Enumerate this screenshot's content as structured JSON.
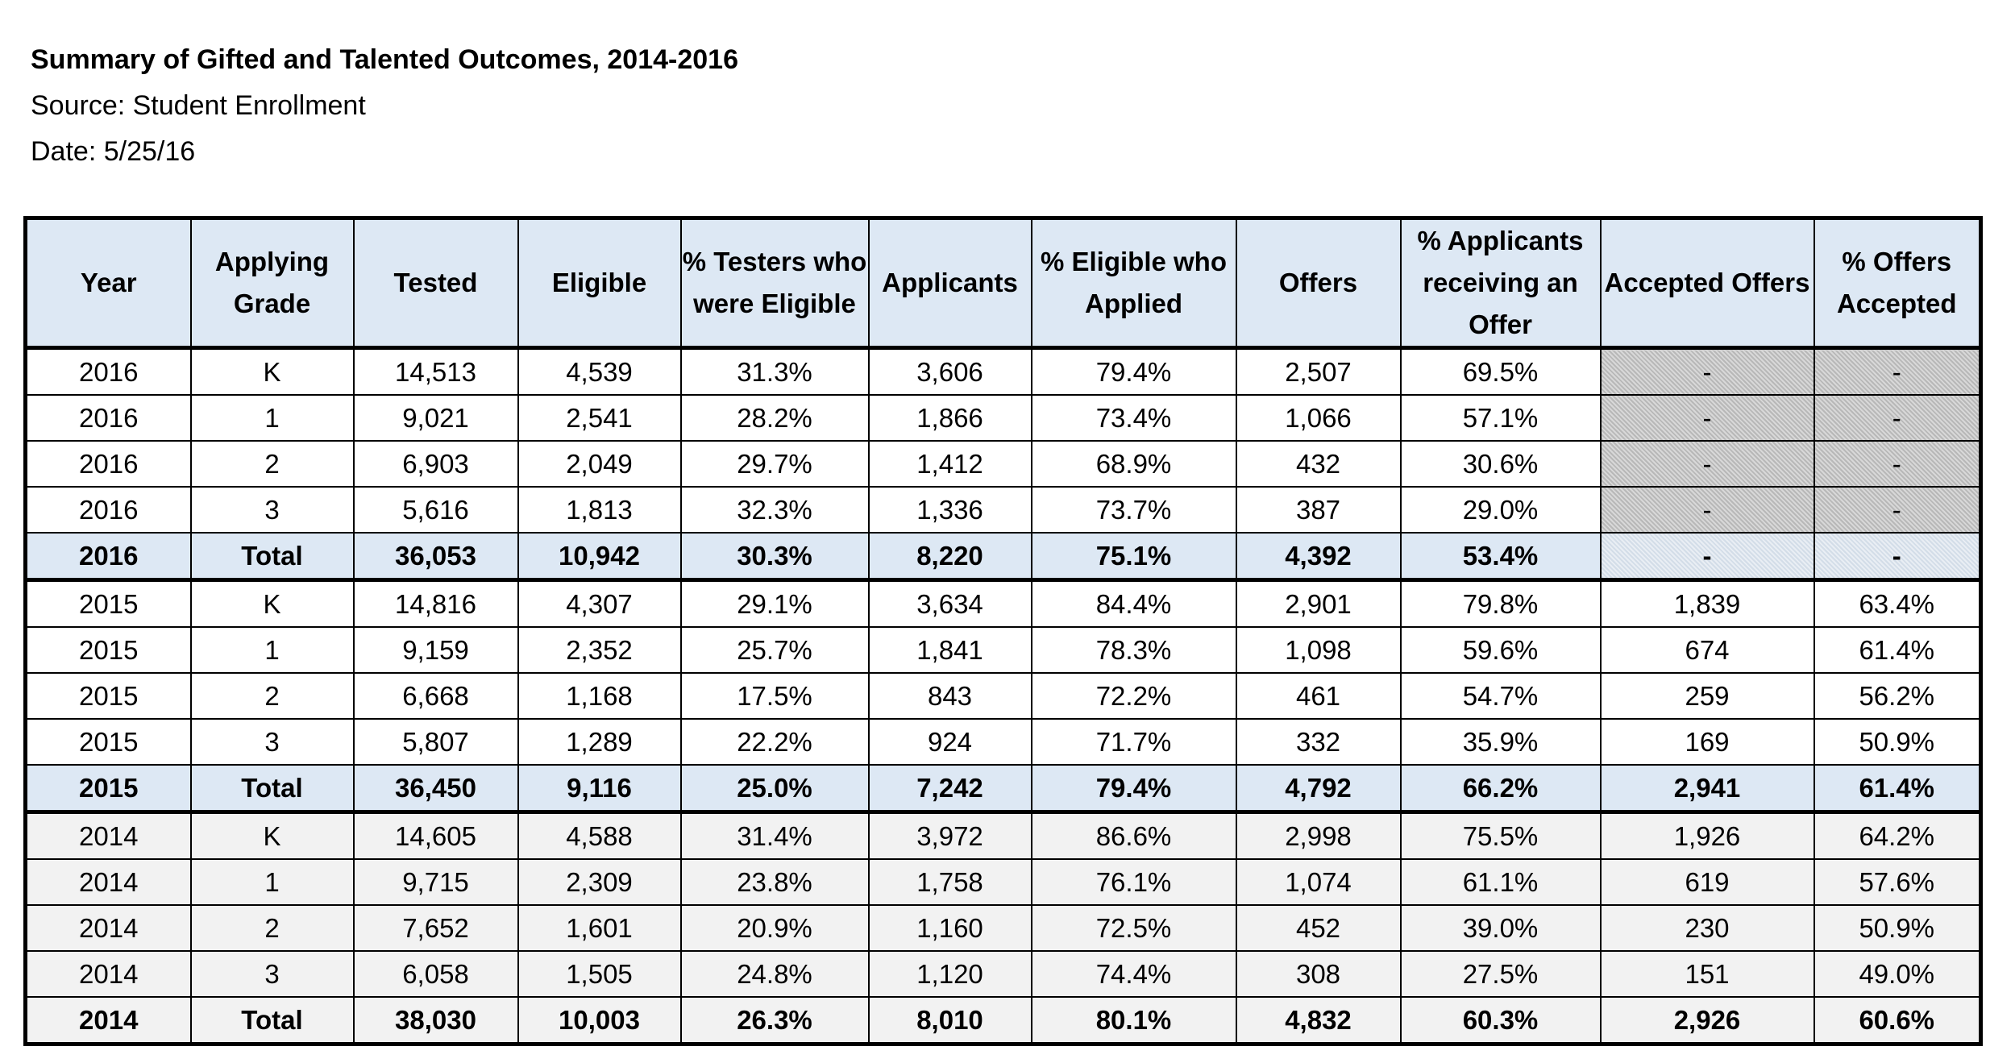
{
  "header": {
    "title": "Summary of Gifted and Talented Outcomes, 2014-2016",
    "source": "Source: Student Enrollment",
    "date": "Date: 5/25/16"
  },
  "table": {
    "headers": [
      "Year",
      "Applying Grade",
      "Tested",
      "Eligible",
      "% Testers who were Eligible",
      "Applicants",
      "% Eligible who Applied",
      "Offers",
      "% Applicants receiving an Offer",
      "Accepted Offers",
      "% Offers Accepted"
    ],
    "rows": [
      [
        "2016",
        "K",
        "14,513",
        "4,539",
        "31.3%",
        "3,606",
        "79.4%",
        "2,507",
        "69.5%",
        "-",
        "-"
      ],
      [
        "2016",
        "1",
        "9,021",
        "2,541",
        "28.2%",
        "1,866",
        "73.4%",
        "1,066",
        "57.1%",
        "-",
        "-"
      ],
      [
        "2016",
        "2",
        "6,903",
        "2,049",
        "29.7%",
        "1,412",
        "68.9%",
        "432",
        "30.6%",
        "-",
        "-"
      ],
      [
        "2016",
        "3",
        "5,616",
        "1,813",
        "32.3%",
        "1,336",
        "73.7%",
        "387",
        "29.0%",
        "-",
        "-"
      ],
      [
        "2016",
        "Total",
        "36,053",
        "10,942",
        "30.3%",
        "8,220",
        "75.1%",
        "4,392",
        "53.4%",
        "-",
        "-"
      ],
      [
        "2015",
        "K",
        "14,816",
        "4,307",
        "29.1%",
        "3,634",
        "84.4%",
        "2,901",
        "79.8%",
        "1,839",
        "63.4%"
      ],
      [
        "2015",
        "1",
        "9,159",
        "2,352",
        "25.7%",
        "1,841",
        "78.3%",
        "1,098",
        "59.6%",
        "674",
        "61.4%"
      ],
      [
        "2015",
        "2",
        "6,668",
        "1,168",
        "17.5%",
        "843",
        "72.2%",
        "461",
        "54.7%",
        "259",
        "56.2%"
      ],
      [
        "2015",
        "3",
        "5,807",
        "1,289",
        "22.2%",
        "924",
        "71.7%",
        "332",
        "35.9%",
        "169",
        "50.9%"
      ],
      [
        "2015",
        "Total",
        "36,450",
        "9,116",
        "25.0%",
        "7,242",
        "79.4%",
        "4,792",
        "66.2%",
        "2,941",
        "61.4%"
      ],
      [
        "2014",
        "K",
        "14,605",
        "4,588",
        "31.4%",
        "3,972",
        "86.6%",
        "2,998",
        "75.5%",
        "1,926",
        "64.2%"
      ],
      [
        "2014",
        "1",
        "9,715",
        "2,309",
        "23.8%",
        "1,758",
        "76.1%",
        "1,074",
        "61.1%",
        "619",
        "57.6%"
      ],
      [
        "2014",
        "2",
        "7,652",
        "1,601",
        "20.9%",
        "1,160",
        "72.5%",
        "452",
        "39.0%",
        "230",
        "50.9%"
      ],
      [
        "2014",
        "3",
        "6,058",
        "1,505",
        "24.8%",
        "1,120",
        "74.4%",
        "308",
        "27.5%",
        "151",
        "49.0%"
      ],
      [
        "2014",
        "Total",
        "38,030",
        "10,003",
        "26.3%",
        "8,010",
        "80.1%",
        "4,832",
        "60.3%",
        "2,926",
        "60.6%"
      ]
    ]
  }
}
